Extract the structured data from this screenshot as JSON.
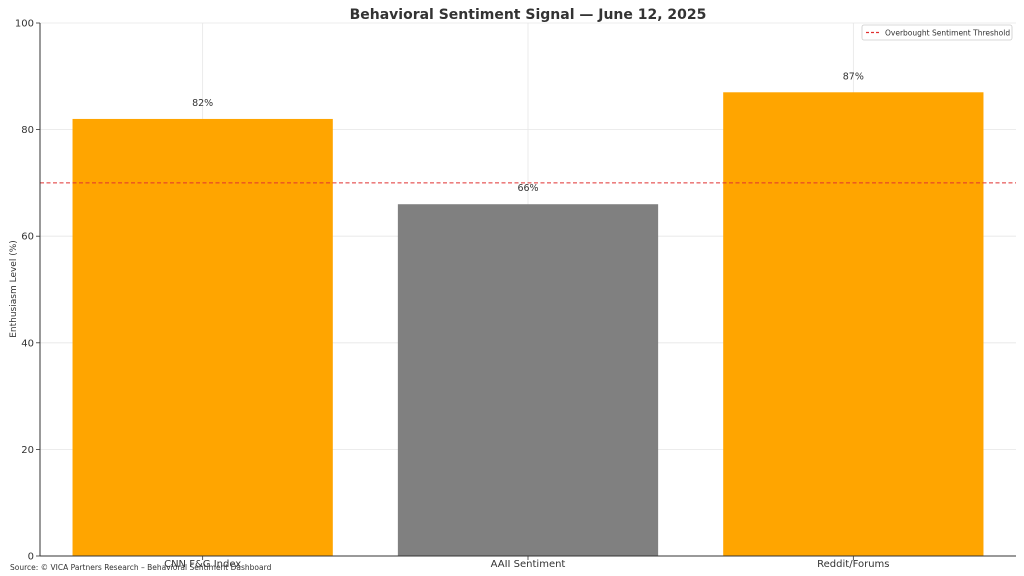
{
  "chart_data": {
    "type": "bar",
    "title": "Behavioral Sentiment Signal — June 12, 2025",
    "xlabel": "",
    "ylabel": "Enthusiasm Level (%)",
    "ylim": [
      0,
      100
    ],
    "yticks": [
      0,
      20,
      40,
      60,
      80,
      100
    ],
    "grid": true,
    "categories": [
      "CNN F&G Index",
      "AAII Sentiment",
      "Reddit/Forums"
    ],
    "values": [
      82,
      66,
      87
    ],
    "data_labels": [
      "82%",
      "66%",
      "87%"
    ],
    "bar_colors": [
      "#FFA500",
      "#808080",
      "#FFA500"
    ],
    "threshold": {
      "value": 70,
      "label": "Overbought Sentiment Threshold",
      "color": "#E03030",
      "style": "dashed"
    },
    "legend_position": "top-right"
  },
  "footer": {
    "source": "Source: © VICA Partners Research – Behavioral Sentiment Dashboard"
  }
}
